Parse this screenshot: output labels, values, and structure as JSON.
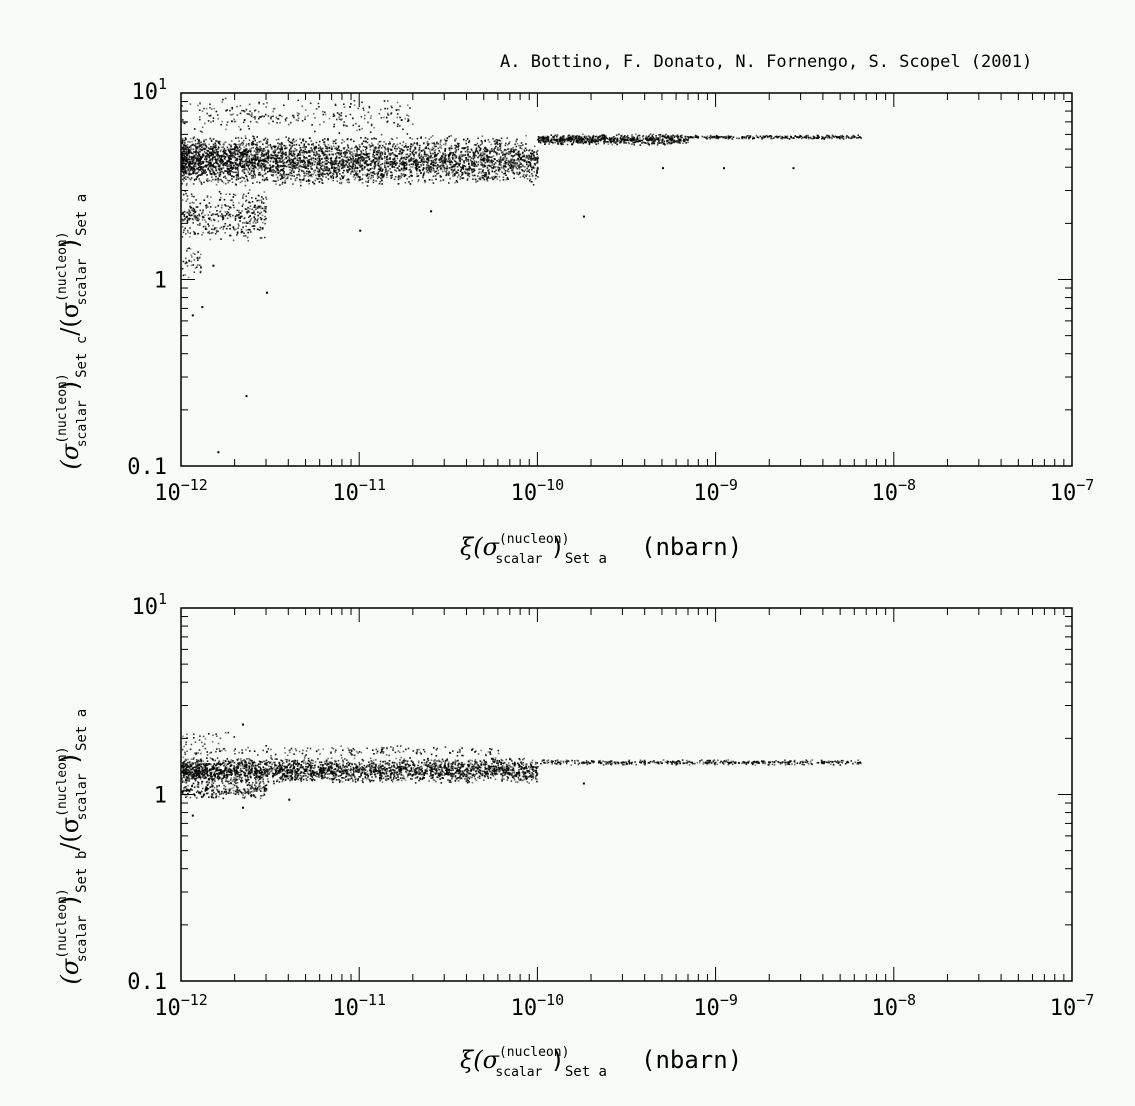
{
  "credit": "A. Bottino, F. Donato, N. Fornengo, S. Scopel (2001)",
  "colors": {
    "background": "#f8fbf8",
    "points": "#000000"
  },
  "chart_data": [
    {
      "type": "scatter",
      "title": "",
      "x_scale": "log",
      "y_scale": "log",
      "xlim": [
        1e-12,
        1e-07
      ],
      "ylim": [
        0.1,
        10
      ],
      "x_ticks": [
        {
          "v": 1e-12,
          "label": "10",
          "exp": "−12"
        },
        {
          "v": 1e-11,
          "label": "10",
          "exp": "−11"
        },
        {
          "v": 1e-10,
          "label": "10",
          "exp": "−10"
        },
        {
          "v": 1e-09,
          "label": "10",
          "exp": "−9"
        },
        {
          "v": 1e-08,
          "label": "10",
          "exp": "−8"
        },
        {
          "v": 1e-07,
          "label": "10",
          "exp": "−7"
        }
      ],
      "y_ticks": [
        {
          "v": 10,
          "label": "10",
          "exp": "1"
        },
        {
          "v": 1,
          "label": "1",
          "exp": ""
        },
        {
          "v": 0.1,
          "label": "0.1",
          "exp": ""
        }
      ],
      "xlabel": {
        "prefix": "ξ(σ",
        "sup": "(nucleon)",
        "sub": "scalar",
        "close": ")",
        "set": "Set a",
        "unit": "(nbarn)"
      },
      "ylabel": {
        "num_set": "Set c",
        "den_set": "Set a",
        "sup": "(nucleon)",
        "sub": "scalar"
      },
      "grid": false,
      "distribution": {
        "bands": [
          {
            "x_range": [
              1e-12,
              1e-10
            ],
            "y_range": [
              3.2,
              6.0
            ],
            "n": 4200
          },
          {
            "x_range": [
              1e-10,
              7e-10
            ],
            "y_range": [
              5.3,
              6.1
            ],
            "n": 700
          },
          {
            "x_range": [
              7e-10,
              6.5e-09
            ],
            "y_range": [
              5.7,
              6.0
            ],
            "n": 260
          },
          {
            "x_range": [
              1e-12,
              3e-12
            ],
            "y_range": [
              1.6,
              3.1
            ],
            "n": 420
          },
          {
            "x_range": [
              1e-12,
              1.3e-12
            ],
            "y_range": [
              1.0,
              1.6
            ],
            "n": 40
          },
          {
            "x_range": [
              1e-12,
              2e-11
            ],
            "y_range": [
              6.0,
              9.5
            ],
            "n": 260
          }
        ],
        "outliers": [
          {
            "x": 1.15e-12,
            "y": 0.65
          },
          {
            "x": 1.6e-12,
            "y": 0.12
          },
          {
            "x": 2.3e-12,
            "y": 0.24
          },
          {
            "x": 3e-12,
            "y": 0.86
          },
          {
            "x": 1.3e-12,
            "y": 0.72
          },
          {
            "x": 2.5e-11,
            "y": 2.35
          },
          {
            "x": 1e-11,
            "y": 1.85
          },
          {
            "x": 1.8e-10,
            "y": 2.2
          },
          {
            "x": 5e-10,
            "y": 4.0
          },
          {
            "x": 1.1e-09,
            "y": 4.0
          },
          {
            "x": 2.7e-09,
            "y": 4.0
          },
          {
            "x": 1.5e-12,
            "y": 1.2
          }
        ]
      }
    },
    {
      "type": "scatter",
      "title": "",
      "x_scale": "log",
      "y_scale": "log",
      "xlim": [
        1e-12,
        1e-07
      ],
      "ylim": [
        0.1,
        10
      ],
      "x_ticks": [
        {
          "v": 1e-12,
          "label": "10",
          "exp": "−12"
        },
        {
          "v": 1e-11,
          "label": "10",
          "exp": "−11"
        },
        {
          "v": 1e-10,
          "label": "10",
          "exp": "−10"
        },
        {
          "v": 1e-09,
          "label": "10",
          "exp": "−9"
        },
        {
          "v": 1e-08,
          "label": "10",
          "exp": "−8"
        },
        {
          "v": 1e-07,
          "label": "10",
          "exp": "−7"
        }
      ],
      "y_ticks": [
        {
          "v": 10,
          "label": "10",
          "exp": "1"
        },
        {
          "v": 1,
          "label": "1",
          "exp": ""
        },
        {
          "v": 0.1,
          "label": "0.1",
          "exp": ""
        }
      ],
      "xlabel": {
        "prefix": "ξ(σ",
        "sup": "(nucleon)",
        "sub": "scalar",
        "close": ")",
        "set": "Set a",
        "unit": "(nbarn)"
      },
      "ylabel": {
        "num_set": "Set b",
        "den_set": "Set a",
        "sup": "(nucleon)",
        "sub": "scalar"
      },
      "grid": false,
      "distribution": {
        "bands": [
          {
            "x_range": [
              1e-12,
              1e-10
            ],
            "y_range": [
              1.15,
              1.6
            ],
            "n": 2800
          },
          {
            "x_range": [
              1e-12,
              3e-12
            ],
            "y_range": [
              0.95,
              1.2
            ],
            "n": 260
          },
          {
            "x_range": [
              1e-10,
              6.5e-09
            ],
            "y_range": [
              1.45,
              1.55
            ],
            "n": 420
          },
          {
            "x_range": [
              1e-12,
              6e-11
            ],
            "y_range": [
              1.6,
              1.85
            ],
            "n": 170
          },
          {
            "x_range": [
              1e-12,
              2e-12
            ],
            "y_range": [
              1.85,
              2.2
            ],
            "n": 25
          }
        ],
        "outliers": [
          {
            "x": 2.2e-12,
            "y": 2.4
          },
          {
            "x": 2.2e-12,
            "y": 0.86
          },
          {
            "x": 1.15e-12,
            "y": 0.78
          },
          {
            "x": 1.8e-10,
            "y": 1.16
          },
          {
            "x": 4e-12,
            "y": 0.95
          }
        ]
      }
    }
  ]
}
